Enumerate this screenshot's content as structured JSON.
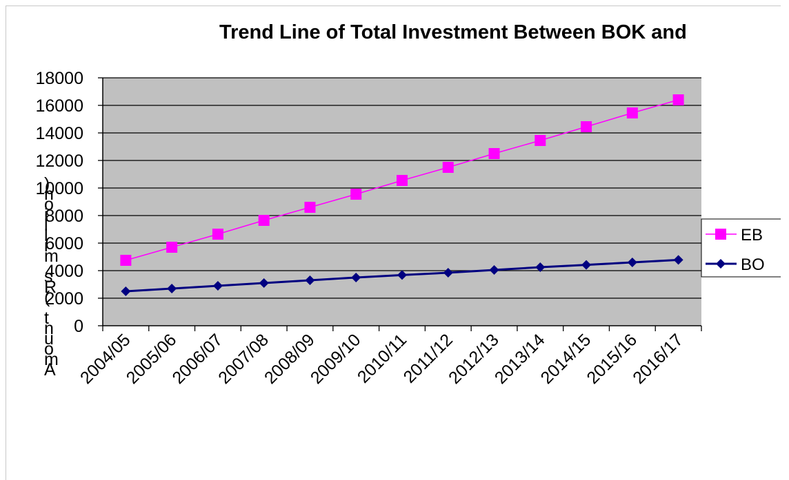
{
  "chart_data": {
    "type": "line",
    "title": "Trend Line of Total Investment Between BOK and",
    "xlabel": "",
    "ylabel": "Amount (Rs million)",
    "ylim": [
      0,
      18000
    ],
    "yticks": [
      "0",
      "2000",
      "4000",
      "6000",
      "8000",
      "10000",
      "12000",
      "14000",
      "16000",
      "18000"
    ],
    "categories": [
      "2004/05",
      "2005/06",
      "2006/07",
      "2007/08",
      "2008/09",
      "2009/10",
      "2010/11",
      "2011/12",
      "2012/13",
      "2013/14",
      "2014/15",
      "2015/16",
      "2016/17"
    ],
    "grid": "horizontal",
    "legend_position": "right",
    "plot_background": "#c0c0c0",
    "series": [
      {
        "name": "EB",
        "color": "#ff00ff",
        "marker": "square",
        "values": [
          4750,
          5700,
          6650,
          7650,
          8600,
          9550,
          10550,
          11500,
          12500,
          13450,
          14450,
          15450,
          16400
        ]
      },
      {
        "name": "BO",
        "color": "#000080",
        "marker": "diamond",
        "values": [
          2500,
          2700,
          2900,
          3100,
          3300,
          3500,
          3680,
          3850,
          4050,
          4250,
          4420,
          4600,
          4780
        ]
      }
    ]
  }
}
